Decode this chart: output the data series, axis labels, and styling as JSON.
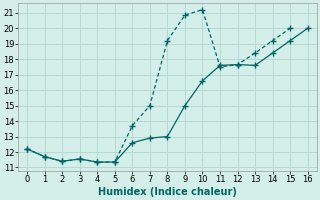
{
  "xlabel": "Humidex (Indice chaleur)",
  "background_color": "#d4eeea",
  "grid_color": "#b8d8d4",
  "line_color": "#006666",
  "xlim": [
    -0.5,
    16.5
  ],
  "ylim": [
    10.8,
    21.6
  ],
  "xticks": [
    0,
    1,
    2,
    3,
    4,
    5,
    6,
    7,
    8,
    9,
    10,
    11,
    12,
    13,
    14,
    15,
    16
  ],
  "yticks": [
    11,
    12,
    13,
    14,
    15,
    16,
    17,
    18,
    19,
    20,
    21
  ],
  "series_dashed_x": [
    0,
    1,
    2,
    3,
    4,
    5,
    6,
    7,
    8,
    9,
    10,
    11,
    12,
    13,
    14,
    15,
    16
  ],
  "series_dashed_y": [
    12.2,
    11.7,
    11.4,
    11.55,
    11.35,
    11.35,
    13.7,
    15.0,
    19.2,
    20.85,
    21.2,
    17.5,
    17.65,
    18.4,
    19.2,
    20.0,
    null
  ],
  "series_solid_x": [
    0,
    1,
    2,
    3,
    4,
    5,
    6,
    7,
    8,
    9,
    10,
    11,
    12,
    13,
    14,
    15,
    16
  ],
  "series_solid_y": [
    12.2,
    11.7,
    11.4,
    11.55,
    11.35,
    11.35,
    12.6,
    12.9,
    13.0,
    15.0,
    16.6,
    17.6,
    17.65,
    17.6,
    18.4,
    19.2,
    20.0
  ],
  "xlabel_fontsize": 7,
  "tick_fontsize": 6
}
